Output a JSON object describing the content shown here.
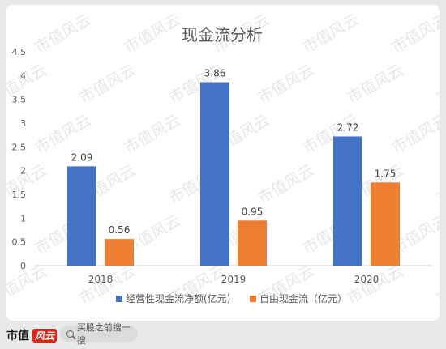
{
  "chart_data": {
    "type": "bar",
    "title": "现金流分析",
    "categories": [
      "2018",
      "2019",
      "2020"
    ],
    "series": [
      {
        "name": "经营性现金流净额(亿元)",
        "values": [
          2.09,
          3.86,
          2.72
        ],
        "color": "#4472c4"
      },
      {
        "name": "自由现金流（亿元）",
        "values": [
          0.56,
          0.95,
          1.75
        ],
        "color": "#ed7d31"
      }
    ],
    "data_labels": [
      [
        "2.09",
        "3.86",
        "2.72"
      ],
      [
        "0.56",
        "0.95",
        "1.75"
      ]
    ],
    "ylim": [
      0,
      4.5
    ],
    "yticks": [
      "0",
      "0.5",
      "1",
      "1.5",
      "2",
      "2.5",
      "3",
      "3.5",
      "4",
      "4.5"
    ],
    "grid": false,
    "legend_placement": "bottom"
  },
  "watermark": "市值风云",
  "footer": {
    "brand": "市值",
    "brand_badge": "风云",
    "search_text": "买股之前搜一搜",
    "search_icon": "search-icon"
  }
}
